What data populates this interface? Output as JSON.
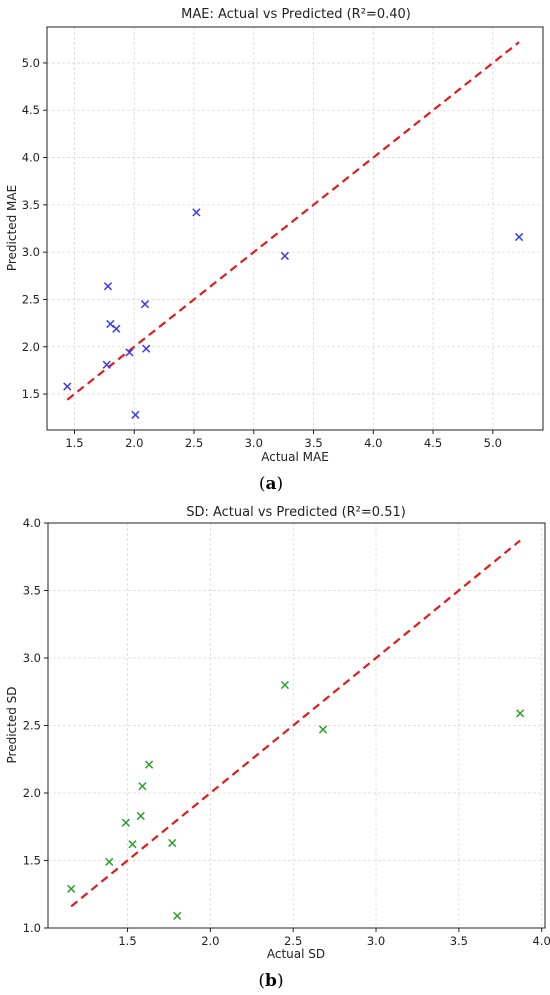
{
  "panels": {
    "a": {
      "caption_open": "(",
      "caption_letter": "a",
      "caption_close": ")"
    },
    "b": {
      "caption_open": "(",
      "caption_letter": "b",
      "caption_close": ")"
    }
  },
  "colors": {
    "mae_points": "#3b3bf0",
    "sd_points": "#2ca02c",
    "fit_line": "#e31a1c"
  },
  "chart_data": [
    {
      "type": "scatter",
      "title": "MAE: Actual vs Predicted (R²=0.40)",
      "xlabel": "Actual MAE",
      "ylabel": "Predicted MAE",
      "xlim": [
        1.27,
        5.42
      ],
      "ylim": [
        1.12,
        5.38
      ],
      "xticks": [
        1.5,
        2.0,
        2.5,
        3.0,
        3.5,
        4.0,
        4.5,
        5.0
      ],
      "xtick_labels": [
        "1.5",
        "2.0",
        "2.5",
        "3.0",
        "3.5",
        "4.0",
        "4.5",
        "5.0"
      ],
      "yticks": [
        1.5,
        2.0,
        2.5,
        3.0,
        3.5,
        4.0,
        4.5,
        5.0
      ],
      "ytick_labels": [
        "1.5",
        "2.0",
        "2.5",
        "3.0",
        "3.5",
        "4.0",
        "4.5",
        "5.0"
      ],
      "grid": true,
      "marker": "x",
      "points": [
        {
          "x": 1.44,
          "y": 1.58
        },
        {
          "x": 1.77,
          "y": 1.81
        },
        {
          "x": 1.78,
          "y": 2.64
        },
        {
          "x": 1.8,
          "y": 2.24
        },
        {
          "x": 1.85,
          "y": 2.19
        },
        {
          "x": 1.96,
          "y": 1.94
        },
        {
          "x": 2.01,
          "y": 1.28
        },
        {
          "x": 2.09,
          "y": 2.45
        },
        {
          "x": 2.1,
          "y": 1.98
        },
        {
          "x": 2.52,
          "y": 3.42
        },
        {
          "x": 3.26,
          "y": 2.96
        },
        {
          "x": 5.22,
          "y": 3.16
        }
      ],
      "fit_line": {
        "x": [
          1.44,
          5.22
        ],
        "y": [
          1.44,
          5.22
        ],
        "style": "dashed"
      }
    },
    {
      "type": "scatter",
      "title": "SD: Actual vs Predicted (R²=0.51)",
      "xlabel": "Actual SD",
      "ylabel": "Predicted SD",
      "xlim": [
        1.02,
        4.02
      ],
      "ylim": [
        1.0,
        4.0
      ],
      "xticks": [
        1.5,
        2.0,
        2.5,
        3.0,
        3.5,
        4.0
      ],
      "xtick_labels": [
        "1.5",
        "2.0",
        "2.5",
        "3.0",
        "3.5",
        "4.0"
      ],
      "yticks": [
        1.0,
        1.5,
        2.0,
        2.5,
        3.0,
        3.5,
        4.0
      ],
      "ytick_labels": [
        "1.0",
        "1.5",
        "2.0",
        "2.5",
        "3.0",
        "3.5",
        "4.0"
      ],
      "grid": true,
      "marker": "x",
      "points": [
        {
          "x": 1.16,
          "y": 1.29
        },
        {
          "x": 1.39,
          "y": 1.49
        },
        {
          "x": 1.49,
          "y": 1.78
        },
        {
          "x": 1.53,
          "y": 1.62
        },
        {
          "x": 1.58,
          "y": 1.83
        },
        {
          "x": 1.59,
          "y": 2.05
        },
        {
          "x": 1.63,
          "y": 2.21
        },
        {
          "x": 1.77,
          "y": 1.63
        },
        {
          "x": 1.8,
          "y": 1.09
        },
        {
          "x": 2.45,
          "y": 2.8
        },
        {
          "x": 2.68,
          "y": 2.47
        },
        {
          "x": 3.87,
          "y": 2.59
        }
      ],
      "fit_line": {
        "x": [
          1.16,
          3.87
        ],
        "y": [
          1.16,
          3.87
        ],
        "style": "dashed"
      }
    }
  ]
}
